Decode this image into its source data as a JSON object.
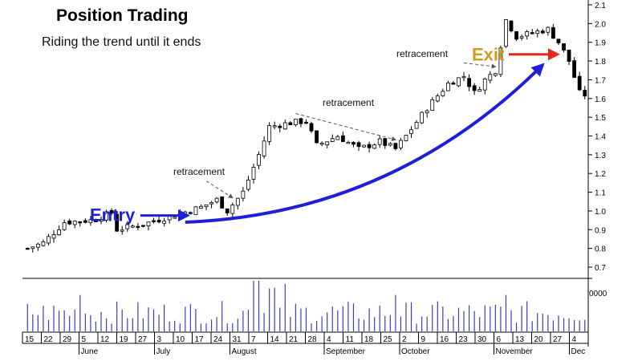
{
  "chart_data": {
    "type": "candlestick",
    "title": "Position Trading",
    "subtitle": "Riding the trend until it ends",
    "y_axis": {
      "ticks": [
        "0.7",
        "0.8",
        "0.9",
        "1.0",
        "1.1",
        "1.2",
        "1.3",
        "1.4",
        "1.5",
        "1.6",
        "1.7",
        "1.8",
        "1.9",
        "2.0",
        "2.1"
      ],
      "range": [
        0.7,
        2.1
      ],
      "position": "right"
    },
    "volume_axis": {
      "ticks": [
        "0000"
      ]
    },
    "x_axis": {
      "day_ticks": [
        "15",
        "22",
        "29",
        "5",
        "12",
        "19",
        "27",
        "3",
        "10",
        "17",
        "24",
        "31",
        "7",
        "14",
        "21",
        "28",
        "4",
        "11",
        "18",
        "25",
        "2",
        "9",
        "16",
        "23",
        "30",
        "6",
        "13",
        "20",
        "27",
        "4"
      ],
      "month_labels": [
        "June",
        "July",
        "August",
        "September",
        "October",
        "November",
        "Dec"
      ]
    },
    "price_path": [
      {
        "bar": 0,
        "price": 0.8
      },
      {
        "bar": 3,
        "price": 0.83
      },
      {
        "bar": 7,
        "price": 0.94
      },
      {
        "bar": 12,
        "price": 0.95
      },
      {
        "bar": 16,
        "price": 0.99
      },
      {
        "bar": 17,
        "price": 0.9
      },
      {
        "bar": 22,
        "price": 0.93
      },
      {
        "bar": 27,
        "price": 0.97
      },
      {
        "bar": 33,
        "price": 1.02
      },
      {
        "bar": 36,
        "price": 1.06
      },
      {
        "bar": 38,
        "price": 1.0
      },
      {
        "bar": 41,
        "price": 1.1
      },
      {
        "bar": 44,
        "price": 1.3
      },
      {
        "bar": 46,
        "price": 1.45
      },
      {
        "bar": 50,
        "price": 1.47
      },
      {
        "bar": 53,
        "price": 1.48
      },
      {
        "bar": 55,
        "price": 1.35
      },
      {
        "bar": 59,
        "price": 1.4
      },
      {
        "bar": 63,
        "price": 1.33
      },
      {
        "bar": 67,
        "price": 1.37
      },
      {
        "bar": 70,
        "price": 1.33
      },
      {
        "bar": 72,
        "price": 1.4
      },
      {
        "bar": 76,
        "price": 1.55
      },
      {
        "bar": 80,
        "price": 1.68
      },
      {
        "bar": 83,
        "price": 1.72
      },
      {
        "bar": 85,
        "price": 1.63
      },
      {
        "bar": 87,
        "price": 1.7
      },
      {
        "bar": 89,
        "price": 1.75
      },
      {
        "bar": 91,
        "price": 2.02
      },
      {
        "bar": 93,
        "price": 1.93
      },
      {
        "bar": 96,
        "price": 1.95
      },
      {
        "bar": 99,
        "price": 1.97
      },
      {
        "bar": 101,
        "price": 1.9
      },
      {
        "bar": 103,
        "price": 1.8
      },
      {
        "bar": 105,
        "price": 1.63
      },
      {
        "bar": 106,
        "price": 1.62
      }
    ],
    "annotations": {
      "entry_label": "Entry",
      "exit_label": "Exit",
      "retracement_label": "retracement",
      "retracements": [
        {
          "label": "retracement",
          "from": {
            "bar": 34,
            "price": 1.16
          },
          "to": {
            "bar": 39,
            "price": 1.07
          }
        },
        {
          "label": "retracement",
          "from": {
            "bar": 51,
            "price": 1.52
          },
          "to": {
            "bar": 70,
            "price": 1.38
          }
        },
        {
          "label": "retracement",
          "from": {
            "bar": 83,
            "price": 1.79
          },
          "to": {
            "bar": 89,
            "price": 1.77
          }
        }
      ],
      "trend_arrow": {
        "from": {
          "bar": 30,
          "price": 0.94
        },
        "to": {
          "bar": 98,
          "price": 1.78
        },
        "color": "#1f1fd9"
      },
      "entry_arrow": {
        "price": 0.98,
        "color": "#1f1fd9"
      },
      "exit_arrow": {
        "price": 1.84,
        "color": "#e8261b"
      }
    },
    "colors": {
      "entry_text": "#1f1fd9",
      "exit_text": "#d39a1d",
      "candle": "#000000",
      "volume": "#3c3cc8",
      "retracement_line": "#555555"
    },
    "grid": false
  }
}
